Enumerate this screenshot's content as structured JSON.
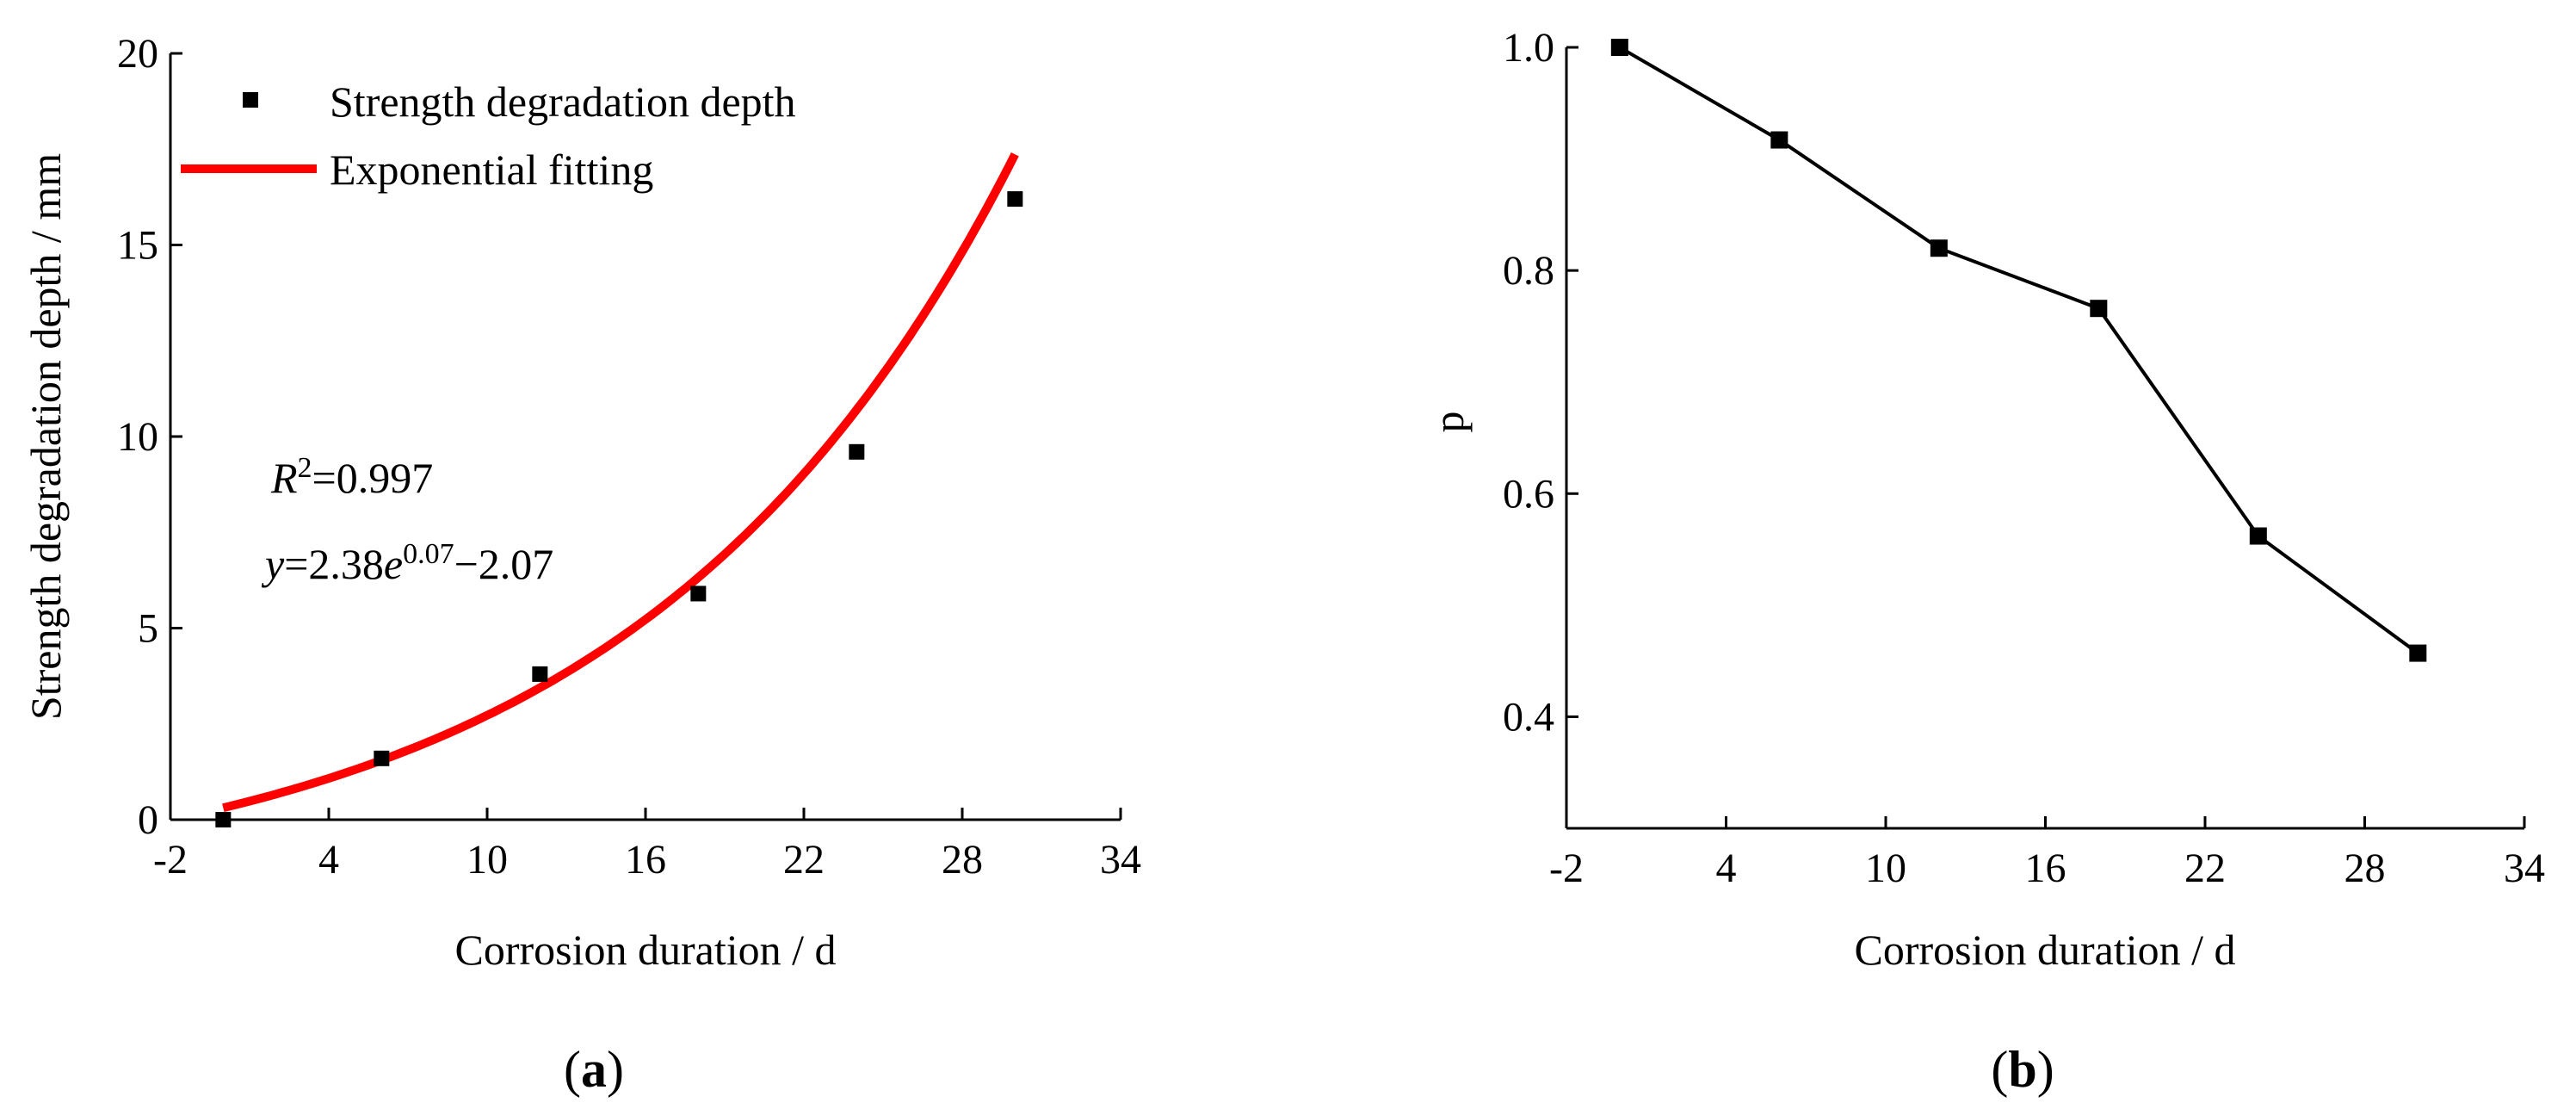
{
  "chart_data": [
    {
      "panel": "a",
      "type": "scatter",
      "xlabel": "Corrosion duration / d",
      "ylabel": "Strength degradation depth / mm",
      "xlim": [
        -2,
        34
      ],
      "ylim": [
        0,
        20
      ],
      "xticks": [
        "-2",
        "4",
        "10",
        "16",
        "22",
        "28",
        "34"
      ],
      "yticks": [
        "0",
        "5",
        "10",
        "15",
        "20"
      ],
      "x": [
        0,
        6,
        12,
        18,
        24,
        30
      ],
      "series": [
        {
          "name": "Strength degradation depth",
          "kind": "marker",
          "color": "#000000",
          "values": [
            0.0,
            1.6,
            3.8,
            5.9,
            9.6,
            16.2
          ]
        },
        {
          "name": "Exponential fitting",
          "kind": "line",
          "color": "#ff0000",
          "formula": {
            "a": 2.38,
            "b": 0.07,
            "c": -2.07
          }
        }
      ],
      "annotations": {
        "r2_label": "R",
        "r2_exp": "2",
        "r2_value": "=0.997",
        "eq_y": "y",
        "eq_mid": "=2.38",
        "eq_e": "e",
        "eq_exp": "0.07",
        "eq_tail": "−2.07"
      },
      "legend_position": "top-left",
      "panel_label": "a",
      "grid": false
    },
    {
      "panel": "b",
      "type": "line",
      "xlabel": "Corrosion duration / d",
      "ylabel": "p",
      "xlim": [
        -2,
        34
      ],
      "ylim": [
        0.3,
        1.0
      ],
      "xticks": [
        "-2",
        "4",
        "10",
        "16",
        "22",
        "28",
        "34"
      ],
      "yticks": [
        "0.4",
        "0.6",
        "0.8",
        "1.0"
      ],
      "x": [
        0,
        6,
        12,
        18,
        24,
        30
      ],
      "series": [
        {
          "kind": "line-marker",
          "color": "#000000",
          "values": [
            1.0,
            0.917,
            0.82,
            0.766,
            0.562,
            0.457
          ]
        }
      ],
      "panel_label": "b",
      "grid": false
    }
  ]
}
